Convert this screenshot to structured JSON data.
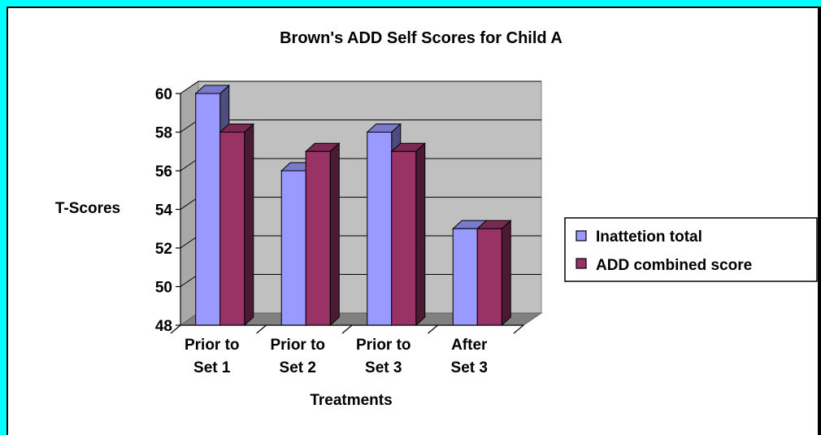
{
  "chart_data": {
    "type": "bar",
    "title": "Brown's ADD Self Scores for Child A",
    "xlabel": "Treatments",
    "ylabel": "T-Scores",
    "categories": [
      [
        "Prior to",
        "Set 1"
      ],
      [
        "Prior to",
        "Set 2"
      ],
      [
        "Prior to",
        "Set 3"
      ],
      [
        "After",
        "Set 3"
      ]
    ],
    "series": [
      {
        "name": "Inattetion total",
        "values": [
          60,
          56,
          58,
          53
        ],
        "color": "#9999FF"
      },
      {
        "name": "ADD combined score",
        "values": [
          58,
          57,
          57,
          53
        ],
        "color": "#993366"
      }
    ],
    "ylim": [
      48,
      60
    ],
    "yticks": [
      48,
      50,
      52,
      54,
      56,
      58,
      60
    ],
    "grid": true,
    "three_d": true,
    "legend": "right",
    "colors": {
      "background": "#FFFFFF",
      "border": "#00FFFF",
      "plot_wall": "#C0C0C0",
      "floor": "#808080"
    }
  }
}
